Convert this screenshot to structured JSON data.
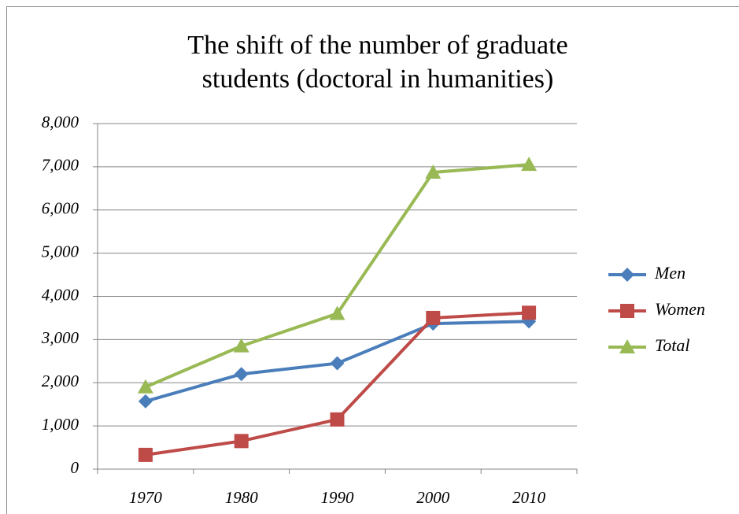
{
  "chart_data": {
    "type": "line",
    "title": [
      "The shift of the number of graduate",
      "students (doctoral in humanities)"
    ],
    "categories": [
      "1970",
      "1980",
      "1990",
      "2000",
      "2010"
    ],
    "series": [
      {
        "name": "Men",
        "color": "#4a7ebb",
        "marker": "diamond",
        "values": [
          1570,
          2200,
          2450,
          3370,
          3420
        ]
      },
      {
        "name": "Women",
        "color": "#be4b48",
        "marker": "square",
        "values": [
          330,
          650,
          1150,
          3500,
          3620
        ]
      },
      {
        "name": "Total",
        "color": "#98b954",
        "marker": "triangle",
        "values": [
          1900,
          2850,
          3600,
          6870,
          7050
        ]
      }
    ],
    "ylim": [
      0,
      8000
    ],
    "yticks": [
      0,
      {
        "value": 1000,
        "label": "1,000"
      },
      {
        "value": 2000,
        "label": "2,000"
      },
      {
        "value": 3000,
        "label": "3,000"
      },
      {
        "value": 4000,
        "label": "4,000"
      },
      {
        "value": 5000,
        "label": "5,000"
      },
      {
        "value": 6000,
        "label": "6,000"
      },
      {
        "value": 7000,
        "label": "7,000"
      },
      {
        "value": 8000,
        "label": "8,000"
      }
    ],
    "grid": true,
    "legend": "right"
  }
}
